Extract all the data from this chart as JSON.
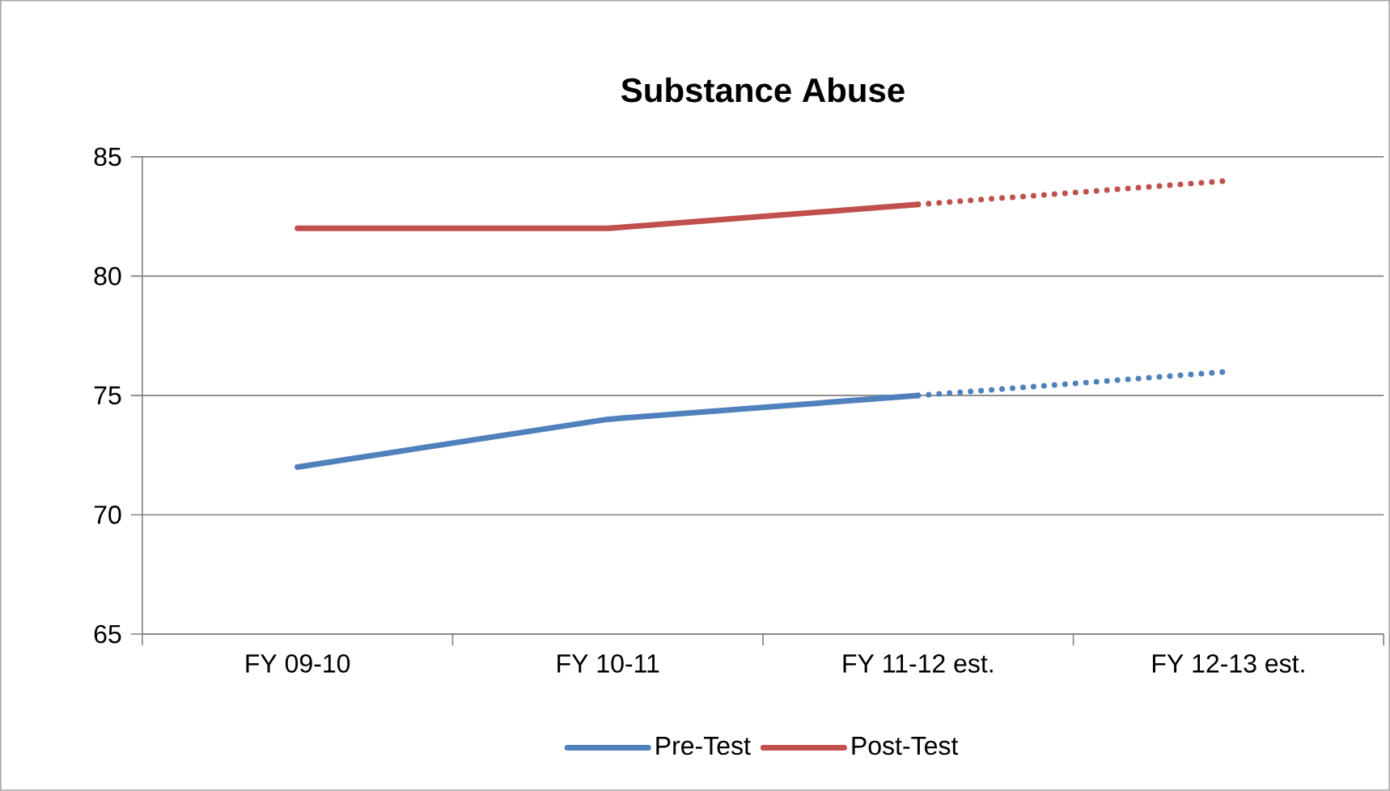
{
  "chart_data": {
    "type": "line",
    "title": "Substance Abuse",
    "categories": [
      "FY 09-10",
      "FY 10-11",
      "FY 11-12 est.",
      "FY 12-13 est."
    ],
    "series": [
      {
        "name": "Pre-Test",
        "color": "#4f81bd",
        "values": [
          72,
          74,
          75,
          null
        ]
      },
      {
        "color": "#4f81bd",
        "values": [
          null,
          null,
          75,
          76
        ],
        "line_style": "dotted"
      },
      {
        "name": "Post-Test",
        "color": "#c0504d",
        "values": [
          82,
          82,
          83,
          null
        ]
      },
      {
        "color": "#c0504d",
        "values": [
          null,
          null,
          83,
          84
        ],
        "line_style": "dotted"
      }
    ],
    "ylim": [
      65,
      85
    ],
    "yticks": [
      65,
      70,
      75,
      80,
      85
    ],
    "grid": "y",
    "legend": "bottom",
    "line_style": "solid"
  }
}
